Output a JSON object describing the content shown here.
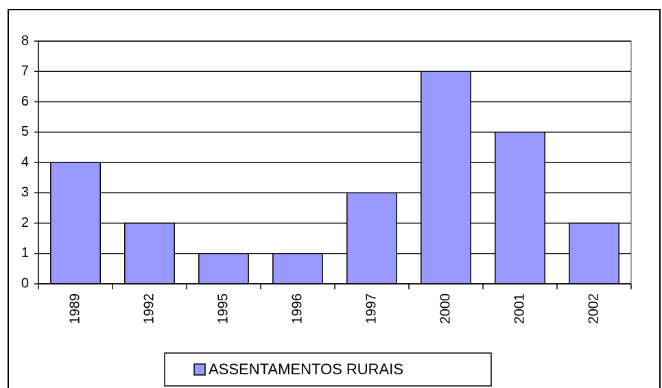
{
  "chart_data": {
    "type": "bar",
    "categories": [
      "1989",
      "1992",
      "1995",
      "1996",
      "1997",
      "2000",
      "2001",
      "2002"
    ],
    "series": [
      {
        "name": "ASSENTAMENTOS RURAIS",
        "color": "#9999ff",
        "values": [
          4,
          2,
          1,
          1,
          3,
          7,
          5,
          2
        ]
      }
    ],
    "ylim": [
      0,
      8
    ],
    "yticks": [
      0,
      1,
      2,
      3,
      4,
      5,
      6,
      7,
      8
    ],
    "grid": true
  }
}
